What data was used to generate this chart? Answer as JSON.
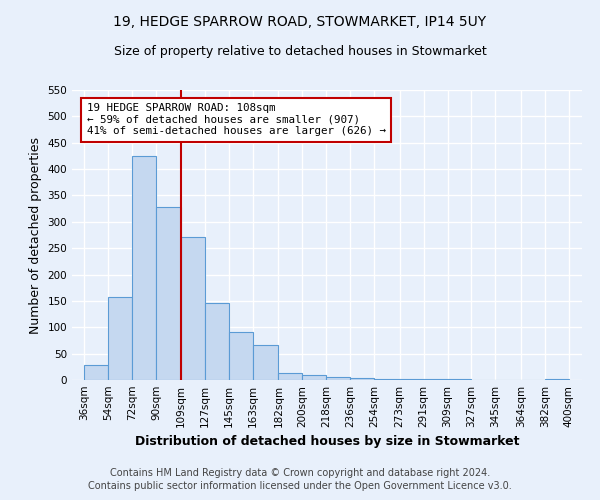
{
  "title1": "19, HEDGE SPARROW ROAD, STOWMARKET, IP14 5UY",
  "title2": "Size of property relative to detached houses in Stowmarket",
  "xlabel": "Distribution of detached houses by size in Stowmarket",
  "ylabel": "Number of detached properties",
  "bar_color": "#c5d8f0",
  "bar_edge_color": "#5b9bd5",
  "bar_left_edges": [
    36,
    54,
    72,
    90,
    109,
    127,
    145,
    163,
    182,
    200,
    218,
    236,
    254,
    273,
    291,
    309,
    327,
    345,
    364,
    382
  ],
  "bar_heights": [
    28,
    157,
    425,
    328,
    272,
    146,
    91,
    67,
    13,
    9,
    5,
    3,
    2,
    1,
    1,
    1,
    0,
    0,
    0,
    2
  ],
  "bar_widths": [
    18,
    18,
    18,
    19,
    18,
    18,
    18,
    19,
    18,
    18,
    18,
    18,
    19,
    18,
    18,
    18,
    18,
    19,
    18,
    18
  ],
  "xtick_labels": [
    "36sqm",
    "54sqm",
    "72sqm",
    "90sqm",
    "109sqm",
    "127sqm",
    "145sqm",
    "163sqm",
    "182sqm",
    "200sqm",
    "218sqm",
    "236sqm",
    "254sqm",
    "273sqm",
    "291sqm",
    "309sqm",
    "327sqm",
    "345sqm",
    "364sqm",
    "382sqm",
    "400sqm"
  ],
  "xtick_positions": [
    36,
    54,
    72,
    90,
    109,
    127,
    145,
    163,
    182,
    200,
    218,
    236,
    254,
    273,
    291,
    309,
    327,
    345,
    364,
    382,
    400
  ],
  "ylim": [
    0,
    550
  ],
  "xlim": [
    27,
    410
  ],
  "yticks": [
    0,
    50,
    100,
    150,
    200,
    250,
    300,
    350,
    400,
    450,
    500,
    550
  ],
  "vline_x": 109,
  "vline_color": "#c00000",
  "annotation_text": "19 HEDGE SPARROW ROAD: 108sqm\n← 59% of detached houses are smaller (907)\n41% of semi-detached houses are larger (626) →",
  "annotation_box_color": "white",
  "annotation_box_edge": "#c00000",
  "footer1": "Contains HM Land Registry data © Crown copyright and database right 2024.",
  "footer2": "Contains public sector information licensed under the Open Government Licence v3.0.",
  "background_color": "#e8f0fb",
  "grid_color": "#ffffff",
  "title_fontsize": 10,
  "subtitle_fontsize": 9,
  "tick_fontsize": 7.5,
  "label_fontsize": 9,
  "footer_fontsize": 7
}
